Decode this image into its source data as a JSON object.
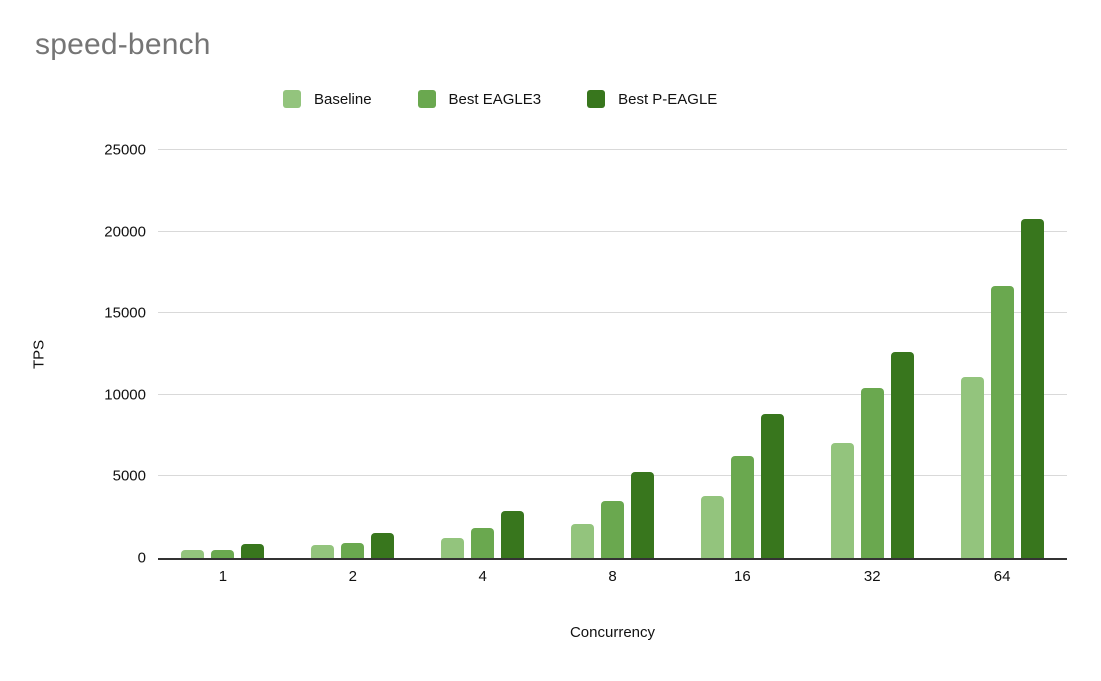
{
  "title": "speed-bench",
  "axes": {
    "y_title": "TPS",
    "x_title": "Concurrency"
  },
  "colors": {
    "title_text": "#757575",
    "tick_text": "#111111",
    "gridline": "#d9d9d9",
    "axis_line": "#333333",
    "background": "#ffffff"
  },
  "chart_data": {
    "type": "bar",
    "title": "speed-bench",
    "xlabel": "Concurrency",
    "ylabel": "TPS",
    "ylim": [
      0,
      25000
    ],
    "y_tick_step": 5000,
    "grid": true,
    "legend_position": "top",
    "categories": [
      "1",
      "2",
      "4",
      "8",
      "16",
      "32",
      "64"
    ],
    "series": [
      {
        "name": "Baseline",
        "color": "#93c47d",
        "values": [
          500,
          800,
          1200,
          2100,
          3800,
          7050,
          11100
        ]
      },
      {
        "name": "Best EAGLE3",
        "color": "#6aa84f",
        "values": [
          480,
          900,
          1850,
          3500,
          6250,
          10400,
          16650
        ]
      },
      {
        "name": "Best P-EAGLE",
        "color": "#38761d",
        "values": [
          850,
          1550,
          2900,
          5250,
          8850,
          12650,
          20800
        ]
      }
    ]
  }
}
